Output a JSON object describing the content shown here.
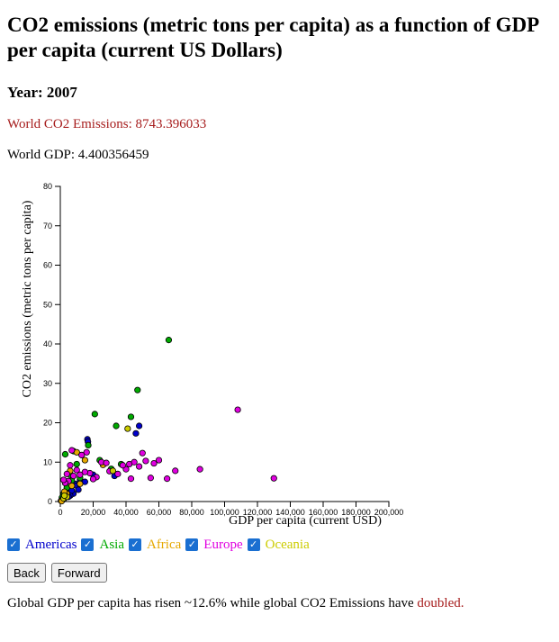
{
  "title": "CO2 emissions (metric tons per capita) as a function of GDP per capita (current US Dollars)",
  "year_heading": "Year: 2007",
  "world_co2": "World CO2 Emissions: 8743.396033",
  "world_gdp": "World GDP: 4.400356459",
  "legend": [
    {
      "label": "Americas",
      "color": "#0000cc",
      "checked": true
    },
    {
      "label": "Asia",
      "color": "#00aa00",
      "checked": true
    },
    {
      "label": "Africa",
      "color": "#e6a800",
      "checked": true
    },
    {
      "label": "Europe",
      "color": "#e000e0",
      "checked": true
    },
    {
      "label": "Oceania",
      "color": "#cccc00",
      "checked": true
    }
  ],
  "buttons": {
    "back": "Back",
    "forward": "Forward"
  },
  "footer": {
    "text": "Global GDP per capita has risen ~12.6% while global CO2 Emissions have ",
    "emph": "doubled."
  },
  "chart_data": {
    "type": "scatter",
    "xlabel": "GDP per capita (current USD)",
    "ylabel": "CO2 emissions (metric tons per capita)",
    "xlim": [
      0,
      200000
    ],
    "ylim": [
      0,
      80
    ],
    "xticks": [
      "0",
      "20,000",
      "40,000",
      "60,000",
      "80,000",
      "100,000",
      "120,000",
      "140,000",
      "160,000",
      "180,000",
      "200,000"
    ],
    "yticks": [
      "0",
      "10",
      "20",
      "30",
      "40",
      "50",
      "60",
      "70",
      "80"
    ],
    "series": [
      {
        "name": "Americas",
        "color": "#0000cc",
        "points": [
          [
            48000,
            19.2
          ],
          [
            46000,
            17.3
          ],
          [
            16500,
            15.8
          ],
          [
            16800,
            15.2
          ],
          [
            9000,
            4.5
          ],
          [
            12000,
            5.5
          ],
          [
            8000,
            2.0
          ],
          [
            6000,
            1.5
          ],
          [
            4000,
            2.5
          ],
          [
            3000,
            1.0
          ],
          [
            10000,
            4.0
          ],
          [
            15000,
            5.0
          ],
          [
            33000,
            6.5
          ],
          [
            20000,
            6.8
          ],
          [
            7000,
            2.8
          ],
          [
            2000,
            0.6
          ],
          [
            5000,
            1.2
          ],
          [
            11000,
            3.0
          ]
        ]
      },
      {
        "name": "Asia",
        "color": "#00aa00",
        "points": [
          [
            66000,
            41.0
          ],
          [
            47000,
            28.3
          ],
          [
            21000,
            22.2
          ],
          [
            43000,
            21.5
          ],
          [
            34000,
            19.2
          ],
          [
            17000,
            14.3
          ],
          [
            8000,
            12.8
          ],
          [
            3000,
            12.0
          ],
          [
            24000,
            10.5
          ],
          [
            37000,
            9.5
          ],
          [
            31000,
            8.3
          ],
          [
            10000,
            9.5
          ],
          [
            6000,
            6.8
          ],
          [
            3000,
            4.7
          ],
          [
            2000,
            2.0
          ],
          [
            1000,
            1.0
          ],
          [
            1500,
            0.5
          ],
          [
            4000,
            3.5
          ],
          [
            7000,
            5.3
          ],
          [
            500,
            0.2
          ],
          [
            12000,
            6.0
          ],
          [
            2500,
            1.4
          ]
        ]
      },
      {
        "name": "Africa",
        "color": "#e6a800",
        "points": [
          [
            10000,
            12.5
          ],
          [
            6000,
            7.8
          ],
          [
            15000,
            10.5
          ],
          [
            26000,
            9.3
          ],
          [
            1000,
            0.3
          ],
          [
            500,
            0.2
          ],
          [
            2000,
            1.0
          ],
          [
            3000,
            1.5
          ],
          [
            1500,
            0.5
          ],
          [
            4000,
            2.0
          ],
          [
            800,
            0.1
          ],
          [
            7000,
            4.0
          ],
          [
            2500,
            2.5
          ],
          [
            12000,
            4.5
          ]
        ]
      },
      {
        "name": "Europe",
        "color": "#e000e0",
        "points": [
          [
            108000,
            23.3
          ],
          [
            7000,
            13.0
          ],
          [
            16000,
            12.5
          ],
          [
            50000,
            12.3
          ],
          [
            42000,
            9.5
          ],
          [
            45000,
            10.0
          ],
          [
            60000,
            10.5
          ],
          [
            57000,
            9.7
          ],
          [
            52000,
            10.3
          ],
          [
            48000,
            8.9
          ],
          [
            40000,
            8.2
          ],
          [
            30000,
            7.7
          ],
          [
            35000,
            7.0
          ],
          [
            70000,
            7.8
          ],
          [
            85000,
            8.2
          ],
          [
            55000,
            6.0
          ],
          [
            43000,
            5.8
          ],
          [
            38000,
            9.2
          ],
          [
            25000,
            10.0
          ],
          [
            18000,
            7.2
          ],
          [
            10000,
            8.0
          ],
          [
            8000,
            6.5
          ],
          [
            6000,
            9.2
          ],
          [
            4000,
            7.0
          ],
          [
            5000,
            5.2
          ],
          [
            12000,
            6.8
          ],
          [
            15000,
            7.5
          ],
          [
            22000,
            6.2
          ],
          [
            28000,
            9.8
          ],
          [
            3000,
            4.7
          ],
          [
            2000,
            5.5
          ],
          [
            130000,
            5.9
          ],
          [
            65000,
            5.8
          ],
          [
            13000,
            11.8
          ],
          [
            20000,
            5.7
          ]
        ]
      },
      {
        "name": "Oceania",
        "color": "#cccc00",
        "points": [
          [
            41000,
            18.5
          ],
          [
            32000,
            7.8
          ],
          [
            2000,
            0.8
          ],
          [
            4000,
            1.2
          ],
          [
            2500,
            1.5
          ]
        ]
      }
    ]
  }
}
